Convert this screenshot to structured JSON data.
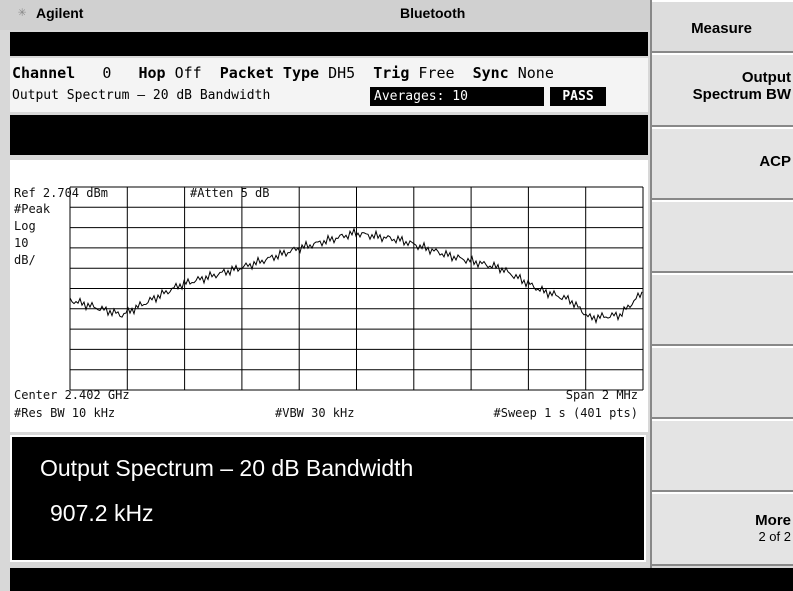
{
  "header": {
    "brand": "Agilent",
    "mode": "Bluetooth"
  },
  "status": {
    "channel_label": "Channel",
    "channel": "0",
    "hop_label": "Hop",
    "hop": "Off",
    "packet_type_label": "Packet Type",
    "packet_type": "DH5",
    "trig_label": "Trig",
    "trig": "Free",
    "sync_label": "Sync",
    "sync": "None",
    "measurement": "Output Spectrum – 20 dB Bandwidth",
    "averages": "Averages: 10",
    "result_status": "PASS"
  },
  "display": {
    "ref": "Ref 2.704 dBm",
    "atten": "#Atten 5 dB",
    "detector": "#Peak",
    "scale_type": "Log",
    "scale": "10",
    "scale_unit": "dB/",
    "center": "Center 2.402 GHz",
    "span": "Span 2 MHz",
    "res_bw": "#Res BW 10 kHz",
    "vbw": "#VBW 30 kHz",
    "sweep": "#Sweep 1 s (401 pts)"
  },
  "result": {
    "title": "Output Spectrum – 20 dB Bandwidth",
    "value": "907.2 kHz"
  },
  "softkeys": {
    "menu_title": "Measure",
    "keys": [
      {
        "lines": [
          "Output",
          "Spectrum BW"
        ]
      },
      {
        "lines": [
          "ACP"
        ]
      },
      {
        "lines": [
          "More",
          "2 of 2"
        ]
      }
    ]
  }
}
